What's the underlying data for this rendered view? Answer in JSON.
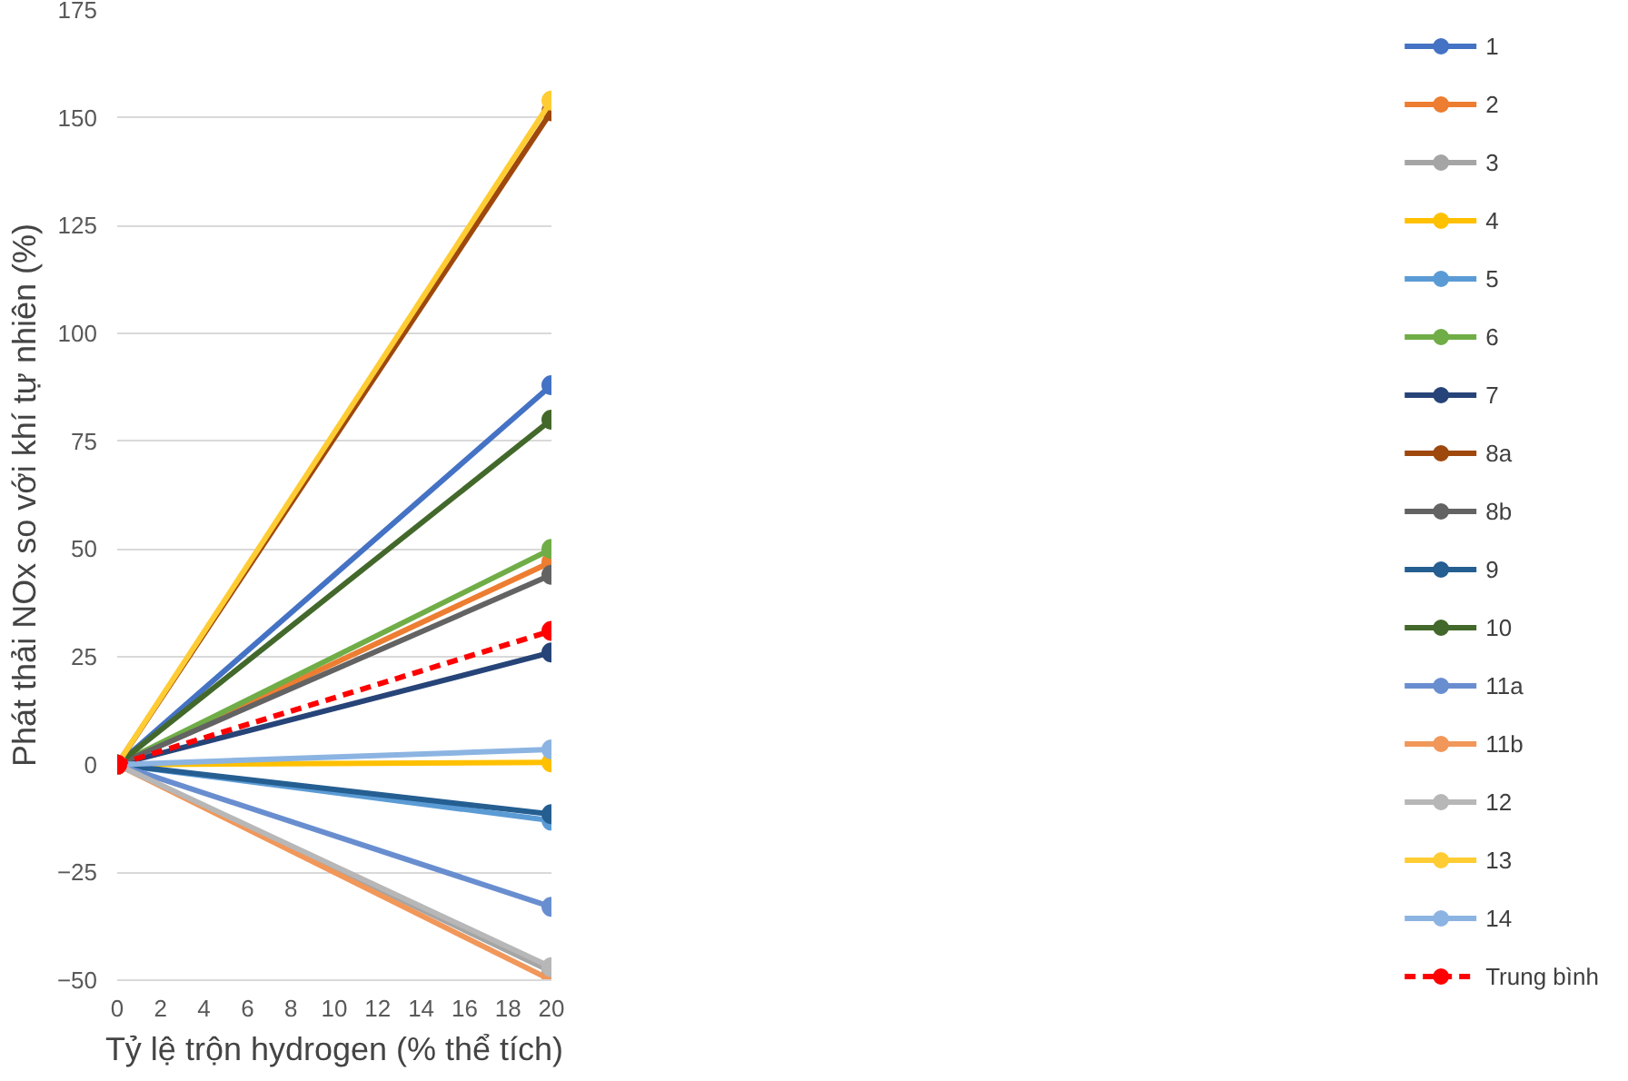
{
  "chart_data": {
    "type": "line",
    "xlabel": "Tỷ lệ trộn hydrogen (% thể tích)",
    "ylabel": "Phát thải NOx so với khí tự nhiên (%)",
    "x": [
      0,
      20
    ],
    "xlim": [
      0,
      20
    ],
    "xticks": [
      0,
      2,
      4,
      6,
      8,
      10,
      12,
      14,
      16,
      18,
      20
    ],
    "ylim": [
      -50,
      175
    ],
    "yticks": [
      -50,
      -25,
      0,
      25,
      50,
      75,
      100,
      125,
      150,
      175
    ],
    "grid": "y",
    "legend": "right",
    "marker": "circle",
    "line_style": "solid",
    "series": [
      {
        "name": "1",
        "color": "#4472c4",
        "values": [
          0,
          88
        ]
      },
      {
        "name": "2",
        "color": "#ed7d31",
        "values": [
          0,
          47
        ]
      },
      {
        "name": "3",
        "color": "#a5a5a5",
        "values": [
          0,
          -48
        ]
      },
      {
        "name": "4",
        "color": "#ffc000",
        "values": [
          0,
          0.5
        ]
      },
      {
        "name": "5",
        "color": "#5b9bd5",
        "values": [
          0,
          -13
        ]
      },
      {
        "name": "6",
        "color": "#70ad47",
        "values": [
          0,
          50
        ]
      },
      {
        "name": "7",
        "color": "#264478",
        "values": [
          0,
          26
        ]
      },
      {
        "name": "8a",
        "color": "#9e480e",
        "values": [
          0,
          151.5
        ]
      },
      {
        "name": "8b",
        "color": "#636363",
        "values": [
          0,
          44
        ]
      },
      {
        "name": "9",
        "color": "#255e91",
        "values": [
          0,
          -11.5
        ]
      },
      {
        "name": "10",
        "color": "#43682b",
        "values": [
          0,
          80
        ]
      },
      {
        "name": "11a",
        "color": "#698ed0",
        "values": [
          0,
          -33
        ]
      },
      {
        "name": "11b",
        "color": "#f1975a",
        "values": [
          0,
          -50
        ]
      },
      {
        "name": "12",
        "color": "#b7b7b7",
        "values": [
          0,
          -47
        ]
      },
      {
        "name": "13",
        "color": "#ffcd33",
        "values": [
          0,
          154
        ]
      },
      {
        "name": "14",
        "color": "#8cb4e2",
        "values": [
          0,
          3.5
        ]
      },
      {
        "name": "Trung bình",
        "color": "#ff0000",
        "values": [
          0,
          31
        ],
        "line_style": "dashed"
      }
    ]
  }
}
